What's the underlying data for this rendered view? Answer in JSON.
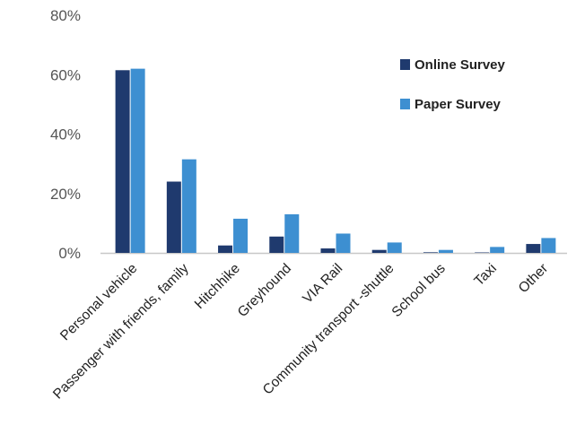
{
  "chart_data": {
    "type": "bar",
    "title": "",
    "xlabel": "",
    "ylabel": "",
    "ylim": [
      0,
      80
    ],
    "yticks": [
      0,
      20,
      40,
      60,
      80
    ],
    "ytick_labels": [
      "0%",
      "20%",
      "40%",
      "60%",
      "80%"
    ],
    "grid": false,
    "legend_position": "top-right",
    "categories": [
      "Personal vehicle",
      "Passenger with friends, family",
      "Hitchhike",
      "Greyhound",
      "VIA Rail",
      "Community transport -shuttle",
      "School bus",
      "Taxi",
      "Other"
    ],
    "series": [
      {
        "name": "Online Survey",
        "color": "#1f3a6e",
        "values": [
          61.5,
          24,
          2.5,
          5.5,
          1.5,
          1,
          0.2,
          0,
          3
        ]
      },
      {
        "name": "Paper Survey",
        "color": "#3d8fd1",
        "values": [
          62,
          31.5,
          11.5,
          13,
          6.5,
          3.5,
          1,
          2,
          5
        ]
      }
    ]
  }
}
